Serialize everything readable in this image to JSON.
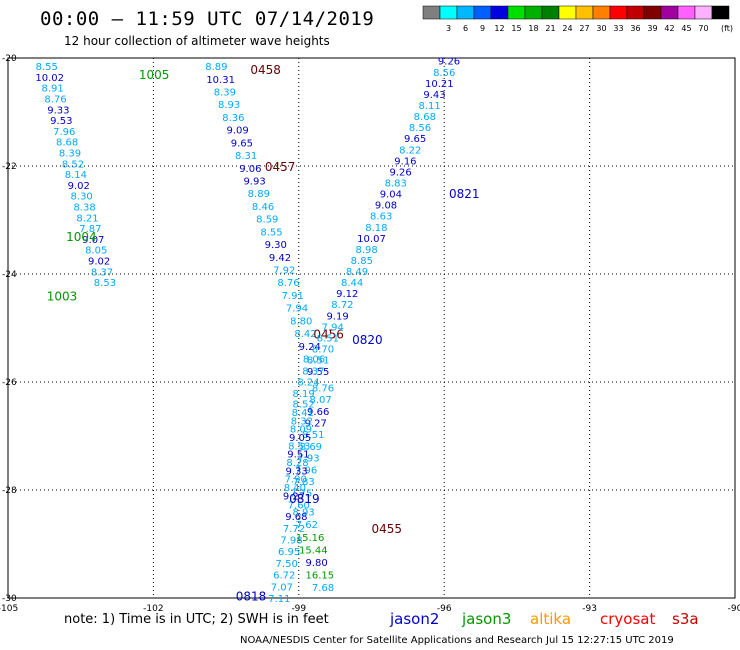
{
  "header": {
    "title": "00:00 – 11:59 UTC 07/14/2019",
    "subtitle": "12 hour collection of altimeter wave heights"
  },
  "colorbar": {
    "unit": "(ft)",
    "entries": [
      {
        "label": "",
        "color": "#7f7f7f"
      },
      {
        "label": "3",
        "color": "#00ffff"
      },
      {
        "label": "6",
        "color": "#00b8ff"
      },
      {
        "label": "9",
        "color": "#0060ff"
      },
      {
        "label": "12",
        "color": "#0000e0"
      },
      {
        "label": "15",
        "color": "#00e000"
      },
      {
        "label": "18",
        "color": "#00b000"
      },
      {
        "label": "21",
        "color": "#008000"
      },
      {
        "label": "24",
        "color": "#ffff00"
      },
      {
        "label": "27",
        "color": "#ffc000"
      },
      {
        "label": "30",
        "color": "#ff8000"
      },
      {
        "label": "33",
        "color": "#ff0000"
      },
      {
        "label": "36",
        "color": "#c00000"
      },
      {
        "label": "39",
        "color": "#800000"
      },
      {
        "label": "42",
        "color": "#a000a0"
      },
      {
        "label": "45",
        "color": "#ff60ff"
      },
      {
        "label": "70",
        "color": "#ffb0ff"
      },
      {
        "label": "",
        "color": "#000000"
      }
    ]
  },
  "footer": {
    "note": "note:  1) Time is in UTC;  2) SWH is in feet",
    "credit": "NOAA/NESDIS Center for Satellite Applications and Research    Jul 15 12:27:15 UTC 2019",
    "satellites": [
      {
        "name": "jason2",
        "color": "#0000cc"
      },
      {
        "name": "jason3",
        "color": "#009900"
      },
      {
        "name": "altika",
        "color": "#ff9900"
      },
      {
        "name": "cryosat",
        "color": "#ff0000"
      },
      {
        "name": "s3a",
        "color": "#cc0000"
      }
    ]
  },
  "colors": {
    "low": "#00aaff",
    "mid": "#0000cc",
    "green": "#009900",
    "time_dark": "#660000",
    "time_blue": "#0000cc",
    "time_green": "#009900"
  },
  "chart_data": {
    "type": "scatter",
    "xlim": [
      -105,
      -90
    ],
    "ylim": [
      -30,
      -20
    ],
    "xticks": [
      "-105",
      "-102",
      "-99",
      "-96",
      "-93",
      "-90"
    ],
    "yticks": [
      "-20",
      "-22",
      "-24",
      "-26",
      "-28",
      "-30"
    ],
    "grid": true,
    "tracks": [
      {
        "lon": [
          -104.2,
          -103.0
        ],
        "lat": [
          -20.15,
          -24.15
        ],
        "times": [
          {
            "label": "1005",
            "lon": -102.3,
            "lat": -20.3,
            "color": "green"
          },
          {
            "label": "1004",
            "lon": -103.8,
            "lat": -23.3,
            "color": "green"
          },
          {
            "label": "1003",
            "lon": -104.2,
            "lat": -24.4,
            "color": "green"
          }
        ],
        "values": [
          "8.55",
          "10.02",
          "8.91",
          "8.76",
          "9.33",
          "9.53",
          "7.96",
          "8.68",
          "8.39",
          "8.52",
          "8.14",
          "9.02",
          "8.30",
          "8.38",
          "8.21",
          "7.87",
          "9.07",
          "8.05",
          "9.02",
          "8.37",
          "8.53"
        ]
      },
      {
        "lon": [
          -100.7,
          -98.6
        ],
        "lat": [
          -20.15,
          -25.8
        ],
        "times": [
          {
            "label": "0458",
            "lon": -100.0,
            "lat": -20.2,
            "color": "time_dark"
          },
          {
            "label": "0457",
            "lon": -99.7,
            "lat": -22.0,
            "color": "time_dark"
          },
          {
            "label": "0456",
            "lon": -98.7,
            "lat": -25.1,
            "color": "time_dark"
          }
        ],
        "values": [
          "8.89",
          "10.31",
          "8.39",
          "8.93",
          "8.36",
          "9.09",
          "9.65",
          "8.31",
          "9.06",
          "9.93",
          "8.89",
          "8.46",
          "8.59",
          "8.55",
          "9.30",
          "9.42",
          "7.92",
          "8.76",
          "7.91",
          "7.94",
          "8.80",
          "8.42",
          "9.24",
          "8.06",
          "9.55"
        ]
      },
      {
        "lon": [
          -98.5,
          -99.4
        ],
        "lat": [
          -26.1,
          -30.0
        ],
        "times": [
          {
            "label": "0455",
            "lon": -97.5,
            "lat": -28.7,
            "color": "time_dark"
          }
        ],
        "values": [
          "8.76",
          "8.07",
          "9.66",
          "9.27",
          "8.51",
          "8.69",
          "7.93",
          "7.96",
          "7.83",
          "7.75",
          "7.60",
          "9.68",
          "7.72",
          "7.98",
          "6.95",
          "7.50",
          "6.72",
          "7.07",
          "7.11"
        ]
      },
      {
        "lon": [
          -95.9,
          -98.9
        ],
        "lat": [
          -20.05,
          -26.2
        ],
        "times": [
          {
            "label": "0821",
            "lon": -95.9,
            "lat": -22.5,
            "color": "time_blue"
          },
          {
            "label": "0820",
            "lon": -97.9,
            "lat": -25.2,
            "color": "time_blue"
          }
        ],
        "values": [
          "9.26",
          "8.56",
          "10.21",
          "9.43",
          "8.11",
          "8.68",
          "8.56",
          "9.65",
          "8.22",
          "9.16",
          "9.26",
          "8.83",
          "9.04",
          "9.08",
          "8.63",
          "8.18",
          "10.07",
          "8.98",
          "8.85",
          "8.49",
          "8.44",
          "9.12",
          "8.72",
          "9.19",
          "7.94",
          "8.51",
          "8.70",
          "8.51",
          "8.37",
          "8.24",
          "8.19"
        ]
      },
      {
        "lon": [
          -98.9,
          -99.1
        ],
        "lat": [
          -26.4,
          -28.1
        ],
        "times": [
          {
            "label": "0819",
            "lon": -99.2,
            "lat": -28.15,
            "color": "time_blue"
          }
        ],
        "values": [
          "8.52",
          "8.41",
          "8.32",
          "8.09",
          "9.05",
          "8.53",
          "9.51",
          "8.28",
          "9.33",
          "7.90",
          "8.40",
          "9.27"
        ]
      },
      {
        "lon": [
          -98.9,
          -98.5
        ],
        "lat": [
          -28.4,
          -29.8
        ],
        "times": [
          {
            "label": "0818",
            "lon": -100.3,
            "lat": -29.95,
            "color": "time_blue"
          }
        ],
        "values": [
          "8.93",
          "7.62",
          "15.16",
          "15.44",
          "9.80",
          "16.15",
          "7.68"
        ]
      }
    ]
  }
}
